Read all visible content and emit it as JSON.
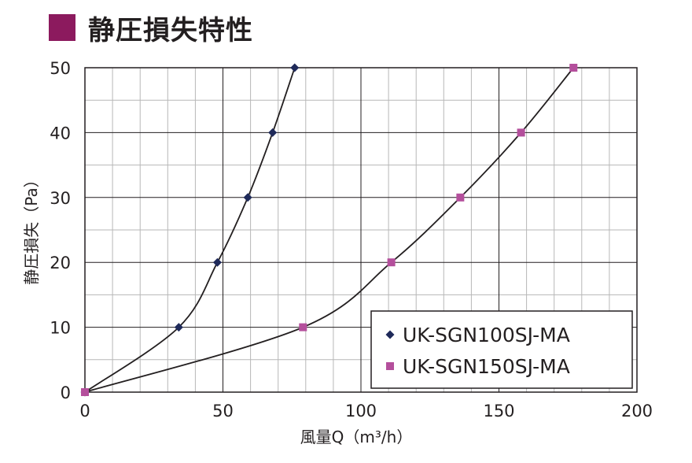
{
  "title": "静圧損失特性",
  "colors": {
    "title_marker": "#8c1a5e",
    "series1": "#1f2a5a",
    "series2": "#b44f9c",
    "curve": "#231f20",
    "grid_major": "#231f20",
    "grid_minor": "#b7b7b7"
  },
  "chart_data": {
    "type": "scatter",
    "title": "静圧損失特性",
    "xlabel": "風量Q（m³/h）",
    "ylabel": "静圧損失（Pa）",
    "xlim": [
      0,
      200
    ],
    "ylim": [
      0,
      50
    ],
    "x_ticks": [
      "0",
      "50",
      "100",
      "150",
      "200"
    ],
    "y_ticks": [
      "0",
      "10",
      "20",
      "30",
      "40",
      "50"
    ],
    "grid": true,
    "legend_position": "bottom-right",
    "series": [
      {
        "name": "UK-SGN100SJ-MA",
        "marker": "diamond",
        "color": "#1f2a5a",
        "x": [
          0,
          34,
          48,
          59,
          68,
          76
        ],
        "y": [
          0,
          10,
          20,
          30,
          40,
          50
        ]
      },
      {
        "name": "UK-SGN150SJ-MA",
        "marker": "square",
        "color": "#b44f9c",
        "x": [
          0,
          79,
          111,
          136,
          158,
          177
        ],
        "y": [
          0,
          10,
          20,
          30,
          40,
          50
        ]
      }
    ]
  }
}
